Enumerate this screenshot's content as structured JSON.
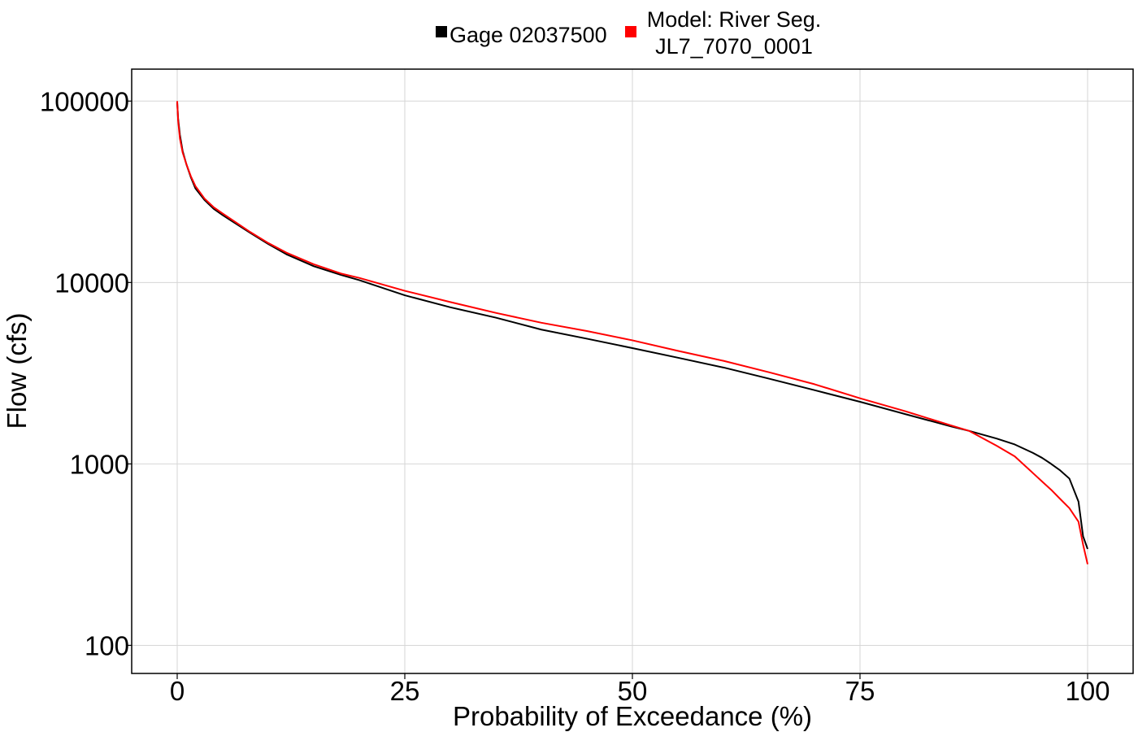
{
  "chart_data": {
    "type": "line",
    "xlabel": "Probability of Exceedance (%)",
    "ylabel": "Flow (cfs)",
    "xlim": [
      -5,
      105
    ],
    "ylim": [
      70,
      150000
    ],
    "yscale": "log",
    "xticks": [
      0,
      25,
      50,
      75,
      100
    ],
    "yticks": [
      100,
      1000,
      10000,
      100000
    ],
    "xtick_labels": [
      "0",
      "25",
      "50",
      "75",
      "100"
    ],
    "ytick_labels": [
      "100",
      "1000",
      "10000",
      "100000"
    ],
    "grid": true,
    "legend_position": "top",
    "series": [
      {
        "name": "Gage 02037500",
        "color": "#000000",
        "x": [
          0,
          0.1,
          0.3,
          0.6,
          1,
          1.5,
          2,
          3,
          4,
          5,
          6,
          8,
          10,
          12,
          15,
          18,
          20,
          25,
          30,
          35,
          40,
          45,
          50,
          55,
          60,
          65,
          70,
          75,
          80,
          85,
          87,
          90,
          92,
          94,
          95,
          96,
          97,
          98,
          99,
          99.5,
          100
        ],
        "y": [
          98000,
          80000,
          65000,
          53000,
          45000,
          38000,
          33000,
          28500,
          25500,
          23500,
          21800,
          18800,
          16300,
          14300,
          12300,
          11000,
          10300,
          8500,
          7300,
          6400,
          5500,
          4900,
          4350,
          3850,
          3400,
          2950,
          2550,
          2200,
          1880,
          1610,
          1520,
          1380,
          1280,
          1150,
          1080,
          1000,
          920,
          830,
          620,
          400,
          340
        ]
      },
      {
        "name": "Model: River Seg. JL7_7070_0001",
        "color": "#ff0000",
        "x": [
          0,
          0.1,
          0.3,
          0.6,
          1,
          1.5,
          2,
          3,
          4,
          5,
          6,
          8,
          10,
          12,
          15,
          18,
          20,
          25,
          30,
          35,
          40,
          45,
          50,
          55,
          60,
          65,
          70,
          75,
          80,
          85,
          87,
          90,
          92,
          94,
          95,
          96,
          97,
          98,
          99,
          99.5,
          100
        ],
        "y": [
          100000,
          78000,
          62000,
          52000,
          45000,
          38500,
          34000,
          29000,
          26000,
          24000,
          22200,
          19000,
          16500,
          14600,
          12600,
          11200,
          10600,
          9000,
          7800,
          6800,
          6000,
          5400,
          4800,
          4200,
          3700,
          3200,
          2750,
          2300,
          1950,
          1630,
          1520,
          1260,
          1100,
          890,
          800,
          720,
          640,
          570,
          480,
          360,
          280
        ]
      }
    ]
  }
}
